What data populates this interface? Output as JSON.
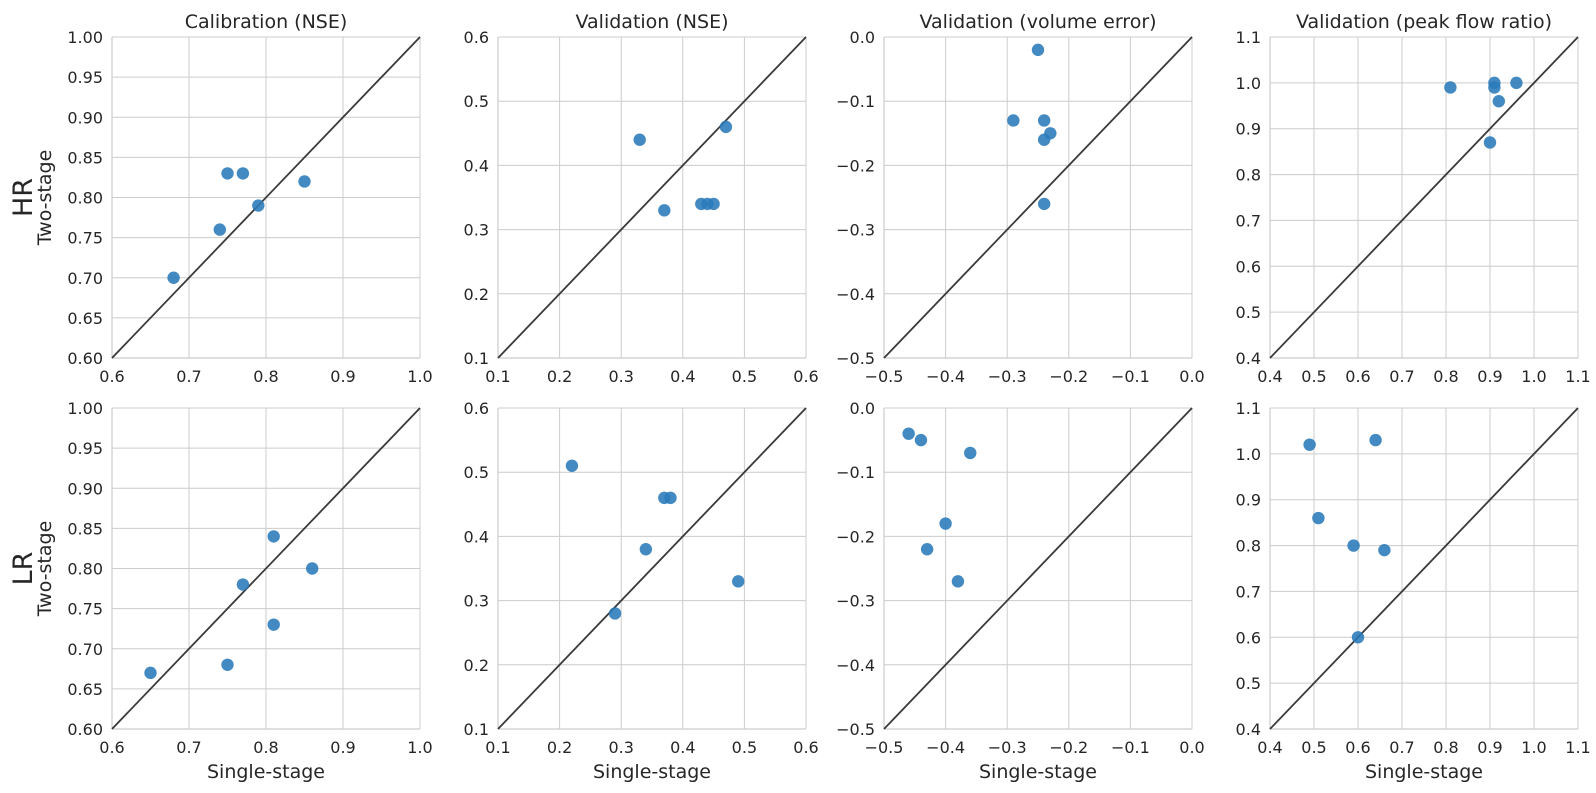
{
  "colors": {
    "point": "#2a7ab9",
    "grid": "#cccccc",
    "identity_line": "#3a3a3a",
    "text": "#262626"
  },
  "rows": [
    {
      "label": "HR",
      "ylabel": "Two-stage"
    },
    {
      "label": "LR",
      "ylabel": "Two-stage"
    }
  ],
  "chart_data": [
    {
      "type": "scatter",
      "row": 0,
      "col": 0,
      "title": "Calibration (NSE)",
      "xlabel": "",
      "ylabel": "Two-stage",
      "xlim": [
        0.6,
        1.0
      ],
      "ylim": [
        0.6,
        1.0
      ],
      "xticks": [
        "0.6",
        "0.7",
        "0.8",
        "0.9",
        "1.0"
      ],
      "yticks": [
        "0.60",
        "0.65",
        "0.70",
        "0.75",
        "0.80",
        "0.85",
        "0.90",
        "0.95",
        "1.00"
      ],
      "identity_line": true,
      "grid": true,
      "x": [
        0.68,
        0.74,
        0.75,
        0.77,
        0.79,
        0.85
      ],
      "y": [
        0.7,
        0.76,
        0.83,
        0.83,
        0.79,
        0.82
      ]
    },
    {
      "type": "scatter",
      "row": 0,
      "col": 1,
      "title": "Validation (NSE)",
      "xlabel": "",
      "ylabel": "",
      "xlim": [
        0.1,
        0.6
      ],
      "ylim": [
        0.1,
        0.6
      ],
      "xticks": [
        "0.1",
        "0.2",
        "0.3",
        "0.4",
        "0.5",
        "0.6"
      ],
      "yticks": [
        "0.1",
        "0.2",
        "0.3",
        "0.4",
        "0.5",
        "0.6"
      ],
      "identity_line": true,
      "grid": true,
      "x": [
        0.33,
        0.37,
        0.43,
        0.44,
        0.45,
        0.47
      ],
      "y": [
        0.44,
        0.33,
        0.34,
        0.34,
        0.34,
        0.46
      ]
    },
    {
      "type": "scatter",
      "row": 0,
      "col": 2,
      "title": "Validation (volume error)",
      "xlabel": "",
      "ylabel": "",
      "xlim": [
        -0.5,
        0.0
      ],
      "ylim": [
        -0.5,
        0.0
      ],
      "xticks": [
        "−0.5",
        "−0.4",
        "−0.3",
        "−0.2",
        "−0.1",
        "0.0"
      ],
      "yticks": [
        "−0.5",
        "−0.4",
        "−0.3",
        "−0.2",
        "−0.1",
        "0.0"
      ],
      "identity_line": true,
      "grid": true,
      "x": [
        -0.29,
        -0.25,
        -0.24,
        -0.24,
        -0.23,
        -0.24
      ],
      "y": [
        -0.13,
        -0.02,
        -0.13,
        -0.16,
        -0.15,
        -0.26
      ]
    },
    {
      "type": "scatter",
      "row": 0,
      "col": 3,
      "title": "Validation (peak flow ratio)",
      "xlabel": "",
      "ylabel": "",
      "xlim": [
        0.4,
        1.1
      ],
      "ylim": [
        0.4,
        1.1
      ],
      "xticks": [
        "0.4",
        "0.5",
        "0.6",
        "0.7",
        "0.8",
        "0.9",
        "1.0",
        "1.1"
      ],
      "yticks": [
        "0.4",
        "0.5",
        "0.6",
        "0.7",
        "0.8",
        "0.9",
        "1.0",
        "1.1"
      ],
      "identity_line": true,
      "grid": true,
      "x": [
        0.81,
        0.9,
        0.91,
        0.91,
        0.92,
        0.96
      ],
      "y": [
        0.99,
        0.87,
        1.0,
        0.99,
        0.96,
        1.0
      ]
    },
    {
      "type": "scatter",
      "row": 1,
      "col": 0,
      "title": "",
      "xlabel": "Single-stage",
      "ylabel": "Two-stage",
      "xlim": [
        0.6,
        1.0
      ],
      "ylim": [
        0.6,
        1.0
      ],
      "xticks": [
        "0.6",
        "0.7",
        "0.8",
        "0.9",
        "1.0"
      ],
      "yticks": [
        "0.60",
        "0.65",
        "0.70",
        "0.75",
        "0.80",
        "0.85",
        "0.90",
        "0.95",
        "1.00"
      ],
      "identity_line": true,
      "grid": true,
      "x": [
        0.65,
        0.75,
        0.77,
        0.81,
        0.81,
        0.86
      ],
      "y": [
        0.67,
        0.68,
        0.78,
        0.84,
        0.73,
        0.8
      ]
    },
    {
      "type": "scatter",
      "row": 1,
      "col": 1,
      "title": "",
      "xlabel": "Single-stage",
      "ylabel": "",
      "xlim": [
        0.1,
        0.6
      ],
      "ylim": [
        0.1,
        0.6
      ],
      "xticks": [
        "0.1",
        "0.2",
        "0.3",
        "0.4",
        "0.5",
        "0.6"
      ],
      "yticks": [
        "0.1",
        "0.2",
        "0.3",
        "0.4",
        "0.5",
        "0.6"
      ],
      "identity_line": true,
      "grid": true,
      "x": [
        0.22,
        0.29,
        0.34,
        0.37,
        0.38,
        0.49
      ],
      "y": [
        0.51,
        0.28,
        0.38,
        0.46,
        0.46,
        0.33
      ]
    },
    {
      "type": "scatter",
      "row": 1,
      "col": 2,
      "title": "",
      "xlabel": "Single-stage",
      "ylabel": "",
      "xlim": [
        -0.5,
        0.0
      ],
      "ylim": [
        -0.5,
        0.0
      ],
      "xticks": [
        "−0.5",
        "−0.4",
        "−0.3",
        "−0.2",
        "−0.1",
        "0.0"
      ],
      "yticks": [
        "−0.5",
        "−0.4",
        "−0.3",
        "−0.2",
        "−0.1",
        "0.0"
      ],
      "identity_line": true,
      "grid": true,
      "x": [
        -0.46,
        -0.44,
        -0.43,
        -0.4,
        -0.38,
        -0.36
      ],
      "y": [
        -0.04,
        -0.05,
        -0.22,
        -0.18,
        -0.27,
        -0.07
      ]
    },
    {
      "type": "scatter",
      "row": 1,
      "col": 3,
      "title": "",
      "xlabel": "Single-stage",
      "ylabel": "",
      "xlim": [
        0.4,
        1.1
      ],
      "ylim": [
        0.4,
        1.1
      ],
      "xticks": [
        "0.4",
        "0.5",
        "0.6",
        "0.7",
        "0.8",
        "0.9",
        "1.0",
        "1.1"
      ],
      "yticks": [
        "0.4",
        "0.5",
        "0.6",
        "0.7",
        "0.8",
        "0.9",
        "1.0",
        "1.1"
      ],
      "identity_line": true,
      "grid": true,
      "x": [
        0.49,
        0.51,
        0.59,
        0.6,
        0.64,
        0.66
      ],
      "y": [
        1.02,
        0.86,
        0.8,
        0.6,
        1.03,
        0.79
      ]
    }
  ]
}
